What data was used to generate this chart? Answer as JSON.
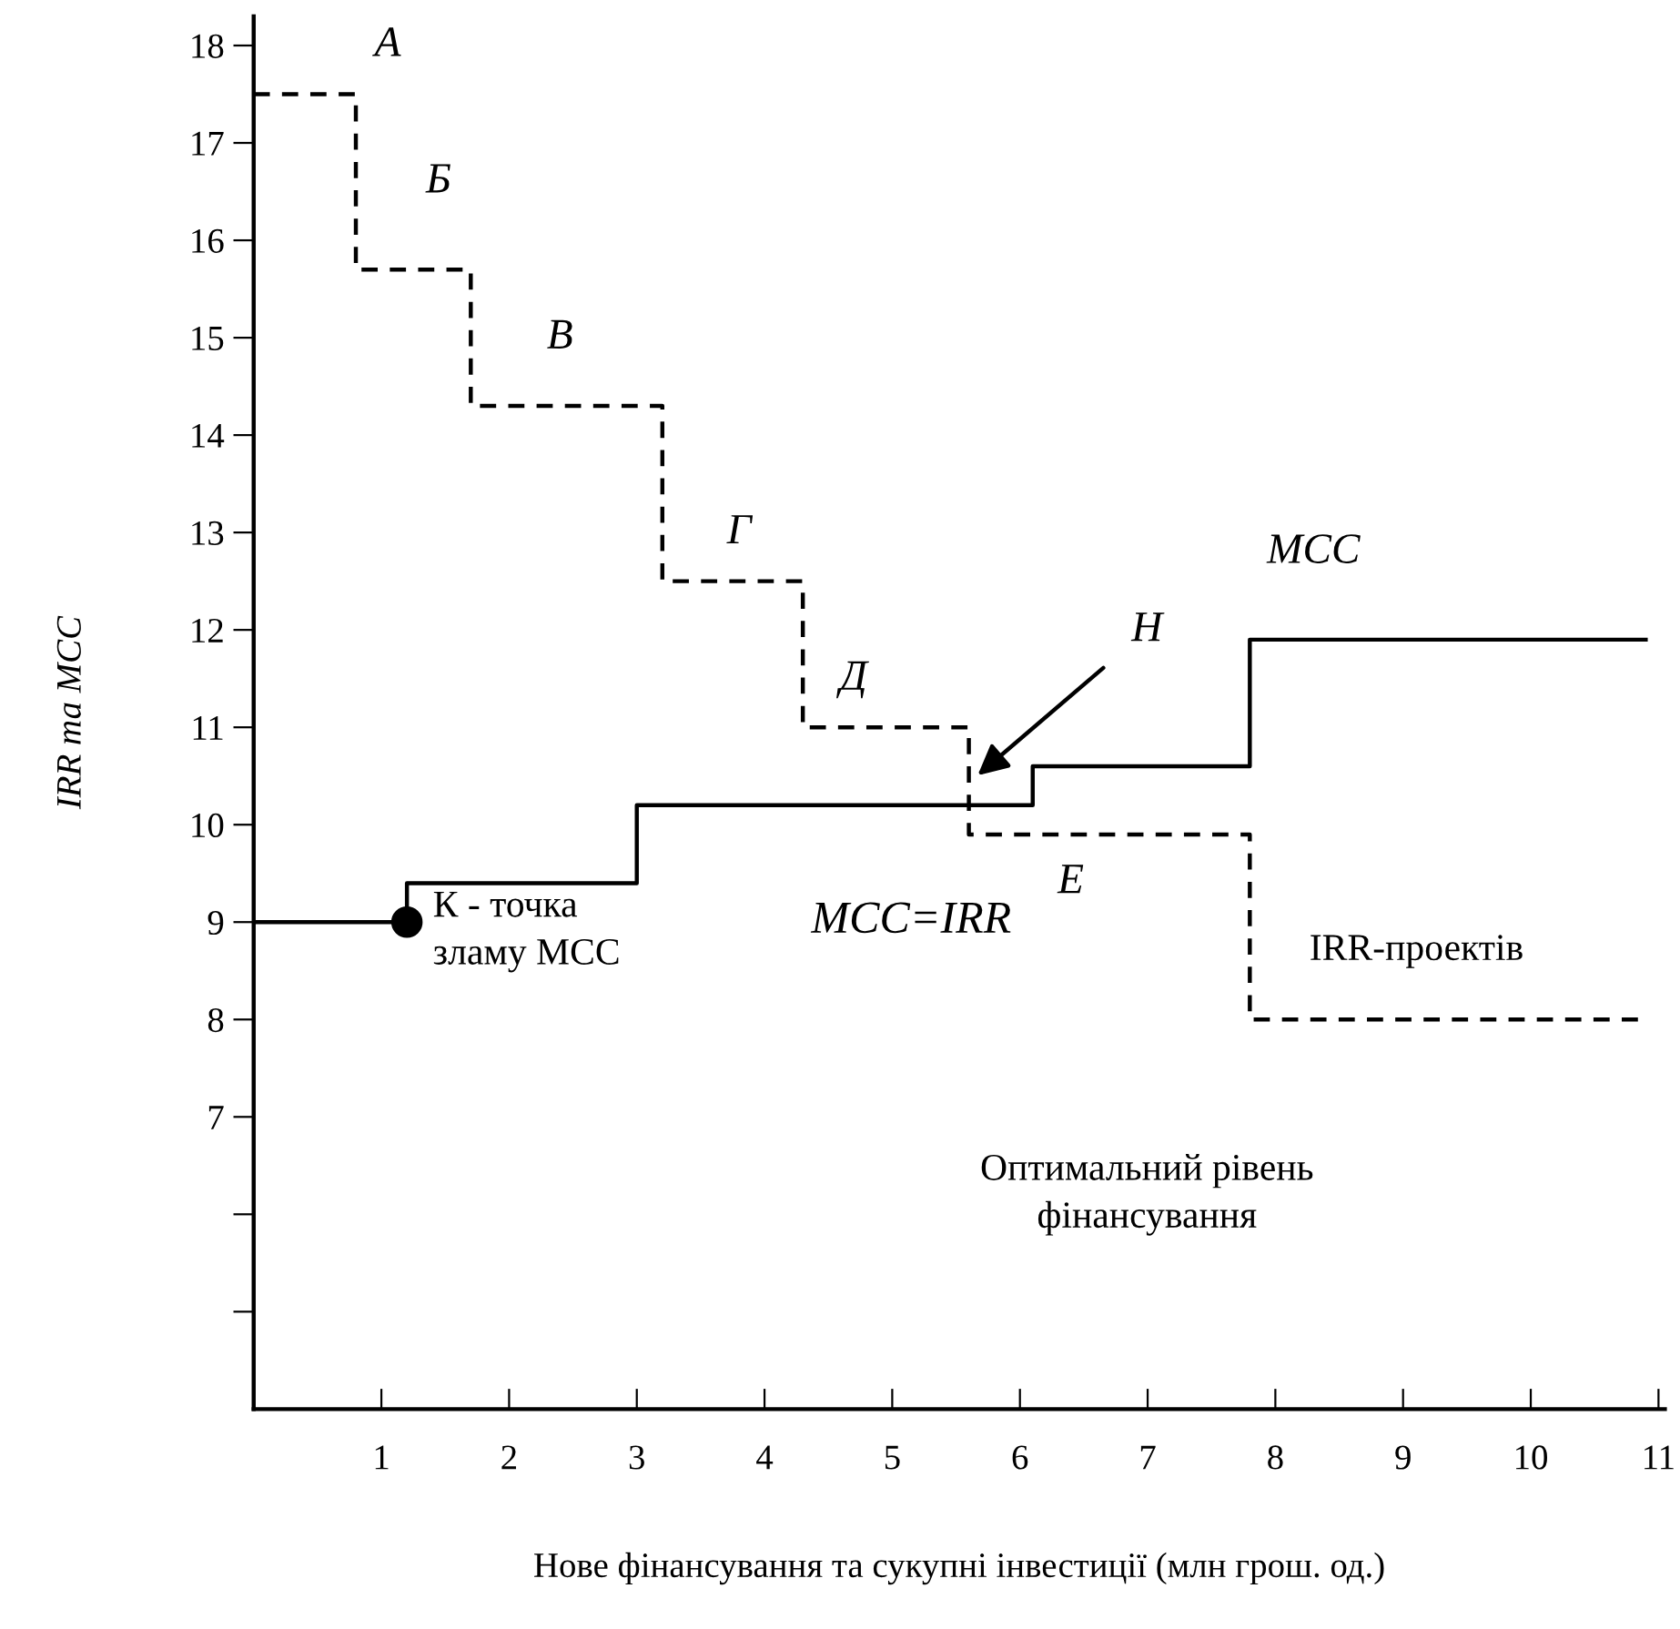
{
  "chart_data": {
    "type": "step",
    "xlabel": "Нове фінансування та сукупні інвестиції (млн грош. од.)",
    "ylabel": "IRR та MCC",
    "xlim": [
      0,
      11.05
    ],
    "ylim": [
      4,
      18.3
    ],
    "xticks": [
      1,
      2,
      3,
      4,
      5,
      6,
      7,
      8,
      9,
      10,
      11
    ],
    "yticks": [
      {
        "value": 5,
        "label": null
      },
      {
        "value": 6,
        "label": null
      },
      7,
      8,
      9,
      10,
      11,
      12,
      13,
      14,
      15,
      16,
      17,
      18
    ],
    "grid": false,
    "legend": false,
    "series": [
      {
        "line_style": "dashed",
        "color": "#000000",
        "x": [
          0,
          0.8,
          1.7,
          3.2,
          4.3,
          5.6,
          7.8,
          10.9
        ],
        "values": [
          17.5,
          15.7,
          14.3,
          12.5,
          11.0,
          9.9,
          8.0,
          8.0
        ]
      },
      {
        "line_style": "solid",
        "color": "#000000",
        "x": [
          0,
          1.2,
          3.0,
          6.1,
          7.8,
          10.9
        ],
        "values": [
          9.0,
          9.4,
          10.2,
          10.6,
          11.9,
          11.9
        ]
      },
      {
        "type": "scatter",
        "marker": "circle",
        "color": "#000000",
        "x": [
          1.2
        ],
        "values": [
          9.0
        ]
      }
    ],
    "annotations": [
      "А",
      "Б",
      "В",
      "Г",
      "Д",
      "Е",
      "Н",
      "MCC",
      "MCC=IRR",
      "К - точка\nзламу МСС",
      "IRR-проектів",
      "Оптимальний рівень\nфінансування"
    ]
  }
}
